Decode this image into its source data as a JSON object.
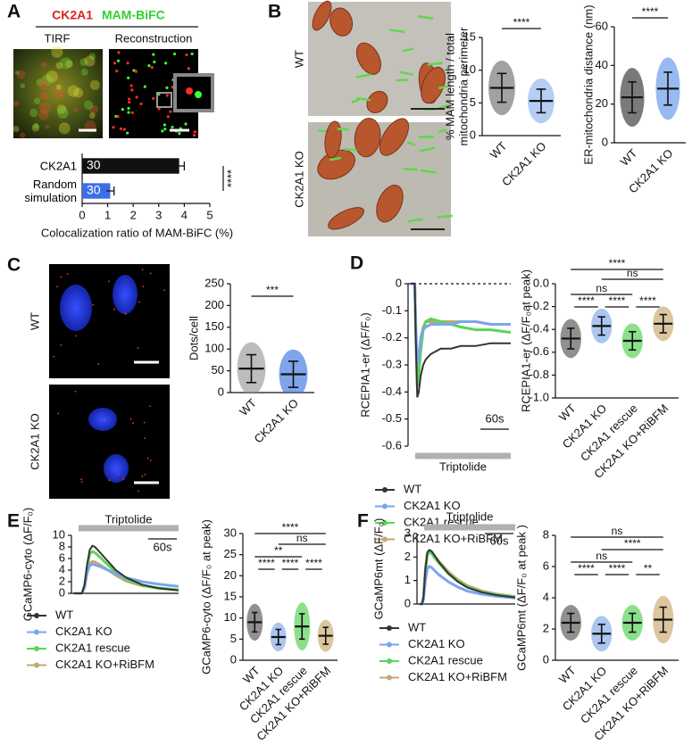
{
  "figure": {
    "panel_labels": [
      "A",
      "B",
      "C",
      "D",
      "E",
      "F"
    ]
  },
  "images": {
    "a_title": [
      "CK2A1",
      "MAM-BiFC"
    ],
    "a_left": "TIRF",
    "a_right": "Reconstruction",
    "b_rows": [
      "WT",
      "CK2A1 KO"
    ],
    "c_rows": [
      "WT",
      "CK2A1 KO"
    ]
  },
  "chart_data": [
    {
      "type": "hbar",
      "categories": [
        "CK2A1",
        "Random simulation"
      ],
      "values": [
        3.8,
        1.1
      ],
      "errors": [
        0.2,
        0.15
      ],
      "bar_labels": [
        "30",
        "30"
      ],
      "colors": [
        "#111111",
        "#3d6ee8"
      ],
      "xlim": [
        0,
        5
      ],
      "xticks": [
        0,
        1,
        2,
        3,
        4,
        5
      ],
      "xlabel": "Colocalization ratio of MAM-BiFC (%)",
      "significance": [
        "****"
      ]
    },
    {
      "type": "dot",
      "ylabel": [
        "% MAM length / total",
        "mitochondria perimeter"
      ],
      "categories": [
        "WT",
        "CK2A1 KO"
      ],
      "values": [
        7.3,
        5.3
      ],
      "errors": [
        2.2,
        1.8
      ],
      "colors": [
        "#707070",
        "#8fb4ee"
      ],
      "ylim": [
        0,
        15
      ],
      "yticks": [
        0,
        5,
        10,
        15
      ],
      "significance": [
        "****"
      ]
    },
    {
      "type": "dot",
      "ylabel": [
        "ER-mitochondria distance (nm)"
      ],
      "categories": [
        "WT",
        "CK2A1 KO"
      ],
      "values": [
        23.5,
        28
      ],
      "errors": [
        8,
        8.5
      ],
      "colors": [
        "#333333",
        "#5f95e8"
      ],
      "ylim": [
        0,
        60
      ],
      "yticks": [
        0,
        20,
        40,
        60
      ],
      "significance": [
        "****"
      ]
    },
    {
      "type": "dot",
      "ylabel": [
        "Dots/cell"
      ],
      "categories": [
        "WT",
        "CK2A1 KO"
      ],
      "values": [
        55,
        42
      ],
      "errors": [
        32,
        30
      ],
      "colors": [
        "#9a9a9a",
        "#3a74e0"
      ],
      "ylim": [
        0,
        250
      ],
      "yticks": [
        0,
        50,
        100,
        150,
        200,
        250
      ],
      "significance": [
        "***"
      ]
    },
    {
      "type": "line",
      "ylabel": [
        "RCEPIA1-er (ΔF/F₀)"
      ],
      "x": [
        0,
        8,
        10,
        13,
        16,
        20,
        25,
        30,
        40,
        60,
        80,
        100,
        130,
        160,
        200
      ],
      "xlim": [
        0,
        200
      ],
      "ylim": [
        -0.6,
        0
      ],
      "yticks": [
        0,
        -0.1,
        -0.2,
        -0.3,
        -0.4,
        -0.5,
        -0.6
      ],
      "reference_line": 0,
      "x_axis": false,
      "annotation": "Triptolide",
      "scale_label": "60s",
      "series": [
        {
          "name": "WT",
          "color": "#333333",
          "values": [
            0,
            0,
            -0.2,
            -0.42,
            -0.4,
            -0.34,
            -0.3,
            -0.28,
            -0.26,
            -0.24,
            -0.24,
            -0.23,
            -0.23,
            -0.22,
            -0.22
          ]
        },
        {
          "name": "CK2A1 KO",
          "color": "#7aa6ec",
          "values": [
            0,
            0,
            -0.15,
            -0.3,
            -0.27,
            -0.2,
            -0.17,
            -0.16,
            -0.15,
            -0.15,
            -0.15,
            -0.14,
            -0.14,
            -0.15,
            -0.15
          ]
        },
        {
          "name": "CK2A1 rescue",
          "color": "#5ad45a",
          "values": [
            0,
            0,
            -0.18,
            -0.38,
            -0.34,
            -0.25,
            -0.17,
            -0.14,
            -0.13,
            -0.14,
            -0.15,
            -0.16,
            -0.17,
            -0.17,
            -0.18
          ]
        },
        {
          "name": "CK2A1 KO+RiBFM",
          "color": "#c4a674",
          "values": [
            0,
            0,
            -0.15,
            -0.32,
            -0.28,
            -0.2,
            -0.16,
            -0.14,
            -0.14,
            -0.14,
            -0.14,
            -0.14,
            -0.14,
            -0.15,
            -0.15
          ]
        }
      ]
    },
    {
      "type": "dot",
      "ylabel": [
        "RCEPIA1-er (ΔF/F₀at peak)"
      ],
      "categories": [
        "WT",
        "CK2A1 KO",
        "CK2A1 rescue",
        "CK2A1 KO+RiBFM"
      ],
      "values": [
        -0.48,
        -0.37,
        -0.5,
        -0.35
      ],
      "errors": [
        0.09,
        0.08,
        0.08,
        0.08
      ],
      "colors": [
        "#555555",
        "#7fa8ea",
        "#4fcf4f",
        "#c9a86c"
      ],
      "ylim": [
        -1,
        0
      ],
      "yticks": [
        {
          "value": 0,
          "label": "0.0"
        },
        -0.2,
        -0.4,
        -0.6,
        -0.8,
        {
          "value": -1,
          "label": "-1.0"
        }
      ],
      "significance": [
        "****",
        "ns",
        "ns",
        "****",
        "****",
        "****"
      ]
    },
    {
      "type": "line",
      "ylabel": [
        "GCaMP6-cyto (ΔF/F₀)"
      ],
      "x": [
        0,
        15,
        20,
        25,
        30,
        35,
        40,
        50,
        60,
        80,
        100,
        130,
        160,
        200
      ],
      "xlim": [
        0,
        200
      ],
      "ylim": [
        0,
        10
      ],
      "yticks": [
        0,
        2,
        4,
        6,
        8,
        10
      ],
      "x_axis": true,
      "annotation": "Triptolide",
      "scale_label": "60s",
      "series": [
        {
          "name": "WT",
          "color": "#333333",
          "values": [
            0,
            0,
            1.5,
            5,
            7.5,
            8.2,
            8,
            7,
            6,
            4,
            2.7,
            1.5,
            0.9,
            0.5
          ]
        },
        {
          "name": "CK2A1 KO",
          "color": "#7aa6ec",
          "values": [
            0,
            0,
            1,
            3.5,
            4.8,
            5,
            4.9,
            4.6,
            4.2,
            3.4,
            2.7,
            2,
            1.6,
            1.2
          ]
        },
        {
          "name": "CK2A1 rescue",
          "color": "#5ad45a",
          "values": [
            0,
            0,
            1.3,
            4.5,
            6.8,
            7.2,
            7,
            6.2,
            5.3,
            3.6,
            2.4,
            1.4,
            0.9,
            0.6
          ]
        },
        {
          "name": "CK2A1 KO+RiBFM",
          "color": "#c4a674",
          "values": [
            0,
            0,
            1.1,
            3.8,
            5.2,
            5.5,
            5.4,
            4.9,
            4.3,
            3.1,
            2.1,
            1.3,
            0.9,
            0.6
          ]
        }
      ]
    },
    {
      "type": "dot",
      "ylabel": [
        "GCaMP6-cyto (ΔF/F₀ at peak)"
      ],
      "categories": [
        "WT",
        "CK2A1 KO",
        "CK2A1 rescue",
        "CK2A1 KO+RiBFM"
      ],
      "values": [
        9,
        5.5,
        8,
        5.8
      ],
      "errors": [
        2.3,
        1.8,
        3,
        2
      ],
      "colors": [
        "#555555",
        "#7fa8ea",
        "#4fcf4f",
        "#c9a86c"
      ],
      "ylim": [
        0,
        30
      ],
      "yticks": [
        0,
        5,
        10,
        15,
        20,
        25,
        30
      ],
      "significance": [
        "****",
        "ns",
        "**",
        "****",
        "****",
        "****"
      ]
    },
    {
      "type": "line",
      "ylabel": [
        "GCaMP6mt (ΔF/F₀)"
      ],
      "x": [
        0,
        5,
        8,
        12,
        16,
        20,
        25,
        30,
        40,
        60,
        80,
        100,
        130,
        160,
        200
      ],
      "xlim": [
        0,
        200
      ],
      "ylim": [
        0,
        3
      ],
      "yticks": [
        0,
        1,
        2,
        3
      ],
      "x_axis": true,
      "annotation": "Triptolide",
      "scale_label": "60s",
      "series": [
        {
          "name": "WT",
          "color": "#333333",
          "values": [
            0,
            0,
            0.3,
            1.5,
            2.2,
            2.3,
            2.25,
            2.1,
            1.8,
            1.3,
            0.95,
            0.7,
            0.5,
            0.38,
            0.28
          ]
        },
        {
          "name": "CK2A1 KO",
          "color": "#7aa6ec",
          "values": [
            0,
            0,
            0.2,
            1.0,
            1.5,
            1.6,
            1.55,
            1.45,
            1.25,
            0.95,
            0.72,
            0.55,
            0.42,
            0.33,
            0.26
          ]
        },
        {
          "name": "CK2A1 rescue",
          "color": "#5ad45a",
          "values": [
            0,
            0,
            0.3,
            1.4,
            2.1,
            2.2,
            2.15,
            2.0,
            1.75,
            1.3,
            0.97,
            0.73,
            0.52,
            0.4,
            0.3
          ]
        },
        {
          "name": "CK2A1 KO+RiBFM",
          "color": "#c4a674",
          "values": [
            0,
            0,
            0.3,
            1.5,
            2.15,
            2.25,
            2.2,
            2.08,
            1.82,
            1.38,
            1.03,
            0.78,
            0.56,
            0.43,
            0.32
          ]
        }
      ]
    },
    {
      "type": "dot",
      "ylabel": [
        "GCaMP6mt (ΔF/F₀ at peak )"
      ],
      "categories": [
        "WT",
        "CK2A1 KO",
        "CK2A1 rescue",
        "CK2A1 KO+RiBFM"
      ],
      "values": [
        2.4,
        1.7,
        2.4,
        2.6
      ],
      "errors": [
        0.6,
        0.6,
        0.6,
        0.8
      ],
      "colors": [
        "#555555",
        "#7fa8ea",
        "#4fcf4f",
        "#c9a86c"
      ],
      "ylim": [
        0,
        8
      ],
      "yticks": [
        0,
        2,
        4,
        6,
        8
      ],
      "significance": [
        "ns",
        "****",
        "ns",
        "****",
        "****",
        "**"
      ]
    }
  ]
}
